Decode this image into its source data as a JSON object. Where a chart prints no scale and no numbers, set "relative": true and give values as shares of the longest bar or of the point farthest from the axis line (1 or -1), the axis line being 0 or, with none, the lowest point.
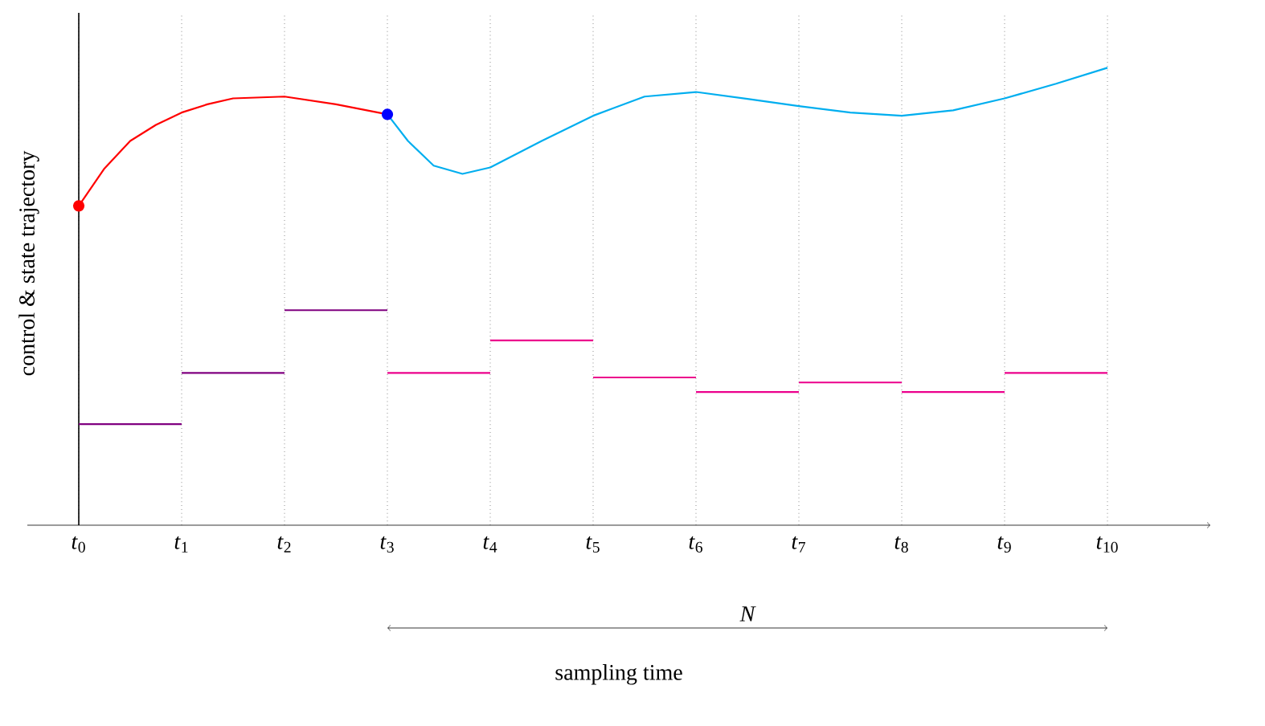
{
  "chart_data": {
    "type": "line",
    "relative": true,
    "xlabel": "sampling time",
    "ylabel": "control & state trajectory",
    "grid": "x",
    "xlim": [
      -0.5,
      11
    ],
    "xticks": [
      {
        "value": 0,
        "label": "*t*$_{0}$"
      },
      {
        "value": 1,
        "label": "*t*$_{1}$"
      },
      {
        "value": 2,
        "label": "*t*$_{2}$"
      },
      {
        "value": 3,
        "label": "*t*$_{3}$"
      },
      {
        "value": 4,
        "label": "*t*$_{4}$"
      },
      {
        "value": 5,
        "label": "*t*$_{5}$"
      },
      {
        "value": 6,
        "label": "*t*$_{6}$"
      },
      {
        "value": 7,
        "label": "*t*$_{7}$"
      },
      {
        "value": 8,
        "label": "*t*$_{8}$"
      },
      {
        "value": 9,
        "label": "*t*$_{9}$"
      },
      {
        "value": 10,
        "label": "*t*$_{10}$"
      }
    ],
    "series": [
      {
        "type": "line",
        "color": "#ff0000",
        "x": [
          0,
          0.25,
          0.5,
          0.75,
          1,
          1.25,
          1.5,
          2,
          2.5,
          3
        ],
        "values": [
          0.698,
          0.78,
          0.84,
          0.875,
          0.902,
          0.92,
          0.933,
          0.937,
          0.92,
          0.898
        ]
      },
      {
        "type": "line",
        "color": "#00aeef",
        "x": [
          3,
          3.2,
          3.45,
          3.73,
          4,
          4.5,
          5,
          5.5,
          6,
          6.5,
          7,
          7.5,
          8,
          8.5,
          9,
          9.5,
          10
        ],
        "values": [
          0.898,
          0.84,
          0.786,
          0.768,
          0.782,
          0.84,
          0.895,
          0.937,
          0.947,
          0.932,
          0.916,
          0.902,
          0.895,
          0.907,
          0.933,
          0.965,
          1.0
        ]
      },
      {
        "type": "step",
        "color": "#800080",
        "x": [
          0,
          1,
          2,
          3
        ],
        "values": [
          0.221,
          0.333,
          0.47,
          0.47
        ]
      },
      {
        "type": "step",
        "color": "#ec008c",
        "x": [
          3,
          4,
          5,
          6,
          7,
          8,
          9,
          10
        ],
        "values": [
          0.333,
          0.404,
          0.323,
          0.291,
          0.312,
          0.291,
          0.333,
          0.333
        ]
      },
      {
        "type": "scatter",
        "color": "#ff0000",
        "marker": "circle",
        "x": [
          0
        ],
        "values": [
          0.698
        ]
      },
      {
        "type": "scatter",
        "color": "#0000ff",
        "marker": "circle",
        "x": [
          3
        ],
        "values": [
          0.898
        ]
      }
    ],
    "annotations": [
      "N"
    ]
  }
}
